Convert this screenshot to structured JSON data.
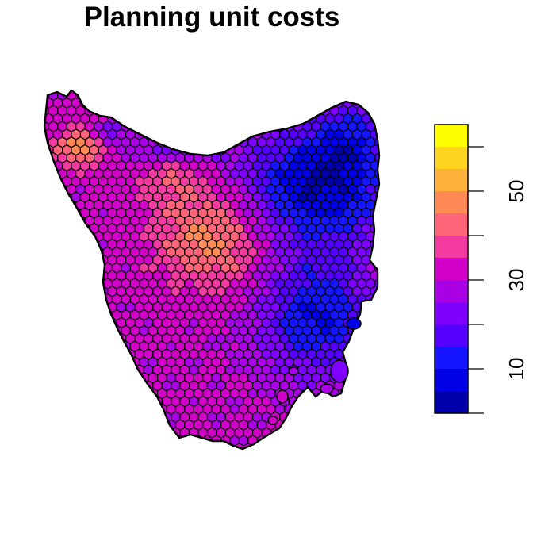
{
  "title": "Planning unit costs",
  "legend": {
    "ticks": [
      {
        "value": 10,
        "label": "10"
      },
      {
        "value": 30,
        "label": "30"
      },
      {
        "value": 50,
        "label": "50"
      }
    ],
    "range": [
      0,
      60
    ],
    "bins": [
      {
        "from": 0,
        "to": 5,
        "color": "#0000AA"
      },
      {
        "from": 5,
        "to": 10,
        "color": "#0000E6"
      },
      {
        "from": 10,
        "to": 15,
        "color": "#1515FF"
      },
      {
        "from": 15,
        "to": 20,
        "color": "#5500FF"
      },
      {
        "from": 20,
        "to": 25,
        "color": "#7F00FF"
      },
      {
        "from": 25,
        "to": 30,
        "color": "#AA00E6"
      },
      {
        "from": 30,
        "to": 35,
        "color": "#D200C8"
      },
      {
        "from": 35,
        "to": 40,
        "color": "#F23AA0"
      },
      {
        "from": 40,
        "to": 45,
        "color": "#FF6478"
      },
      {
        "from": 45,
        "to": 50,
        "color": "#FF8A55"
      },
      {
        "from": 50,
        "to": 55,
        "color": "#FFB23A"
      },
      {
        "from": 55,
        "to": 60,
        "color": "#FFD41F"
      },
      {
        "from": 60,
        "to": 65,
        "color": "#FFFF00"
      }
    ]
  }
}
